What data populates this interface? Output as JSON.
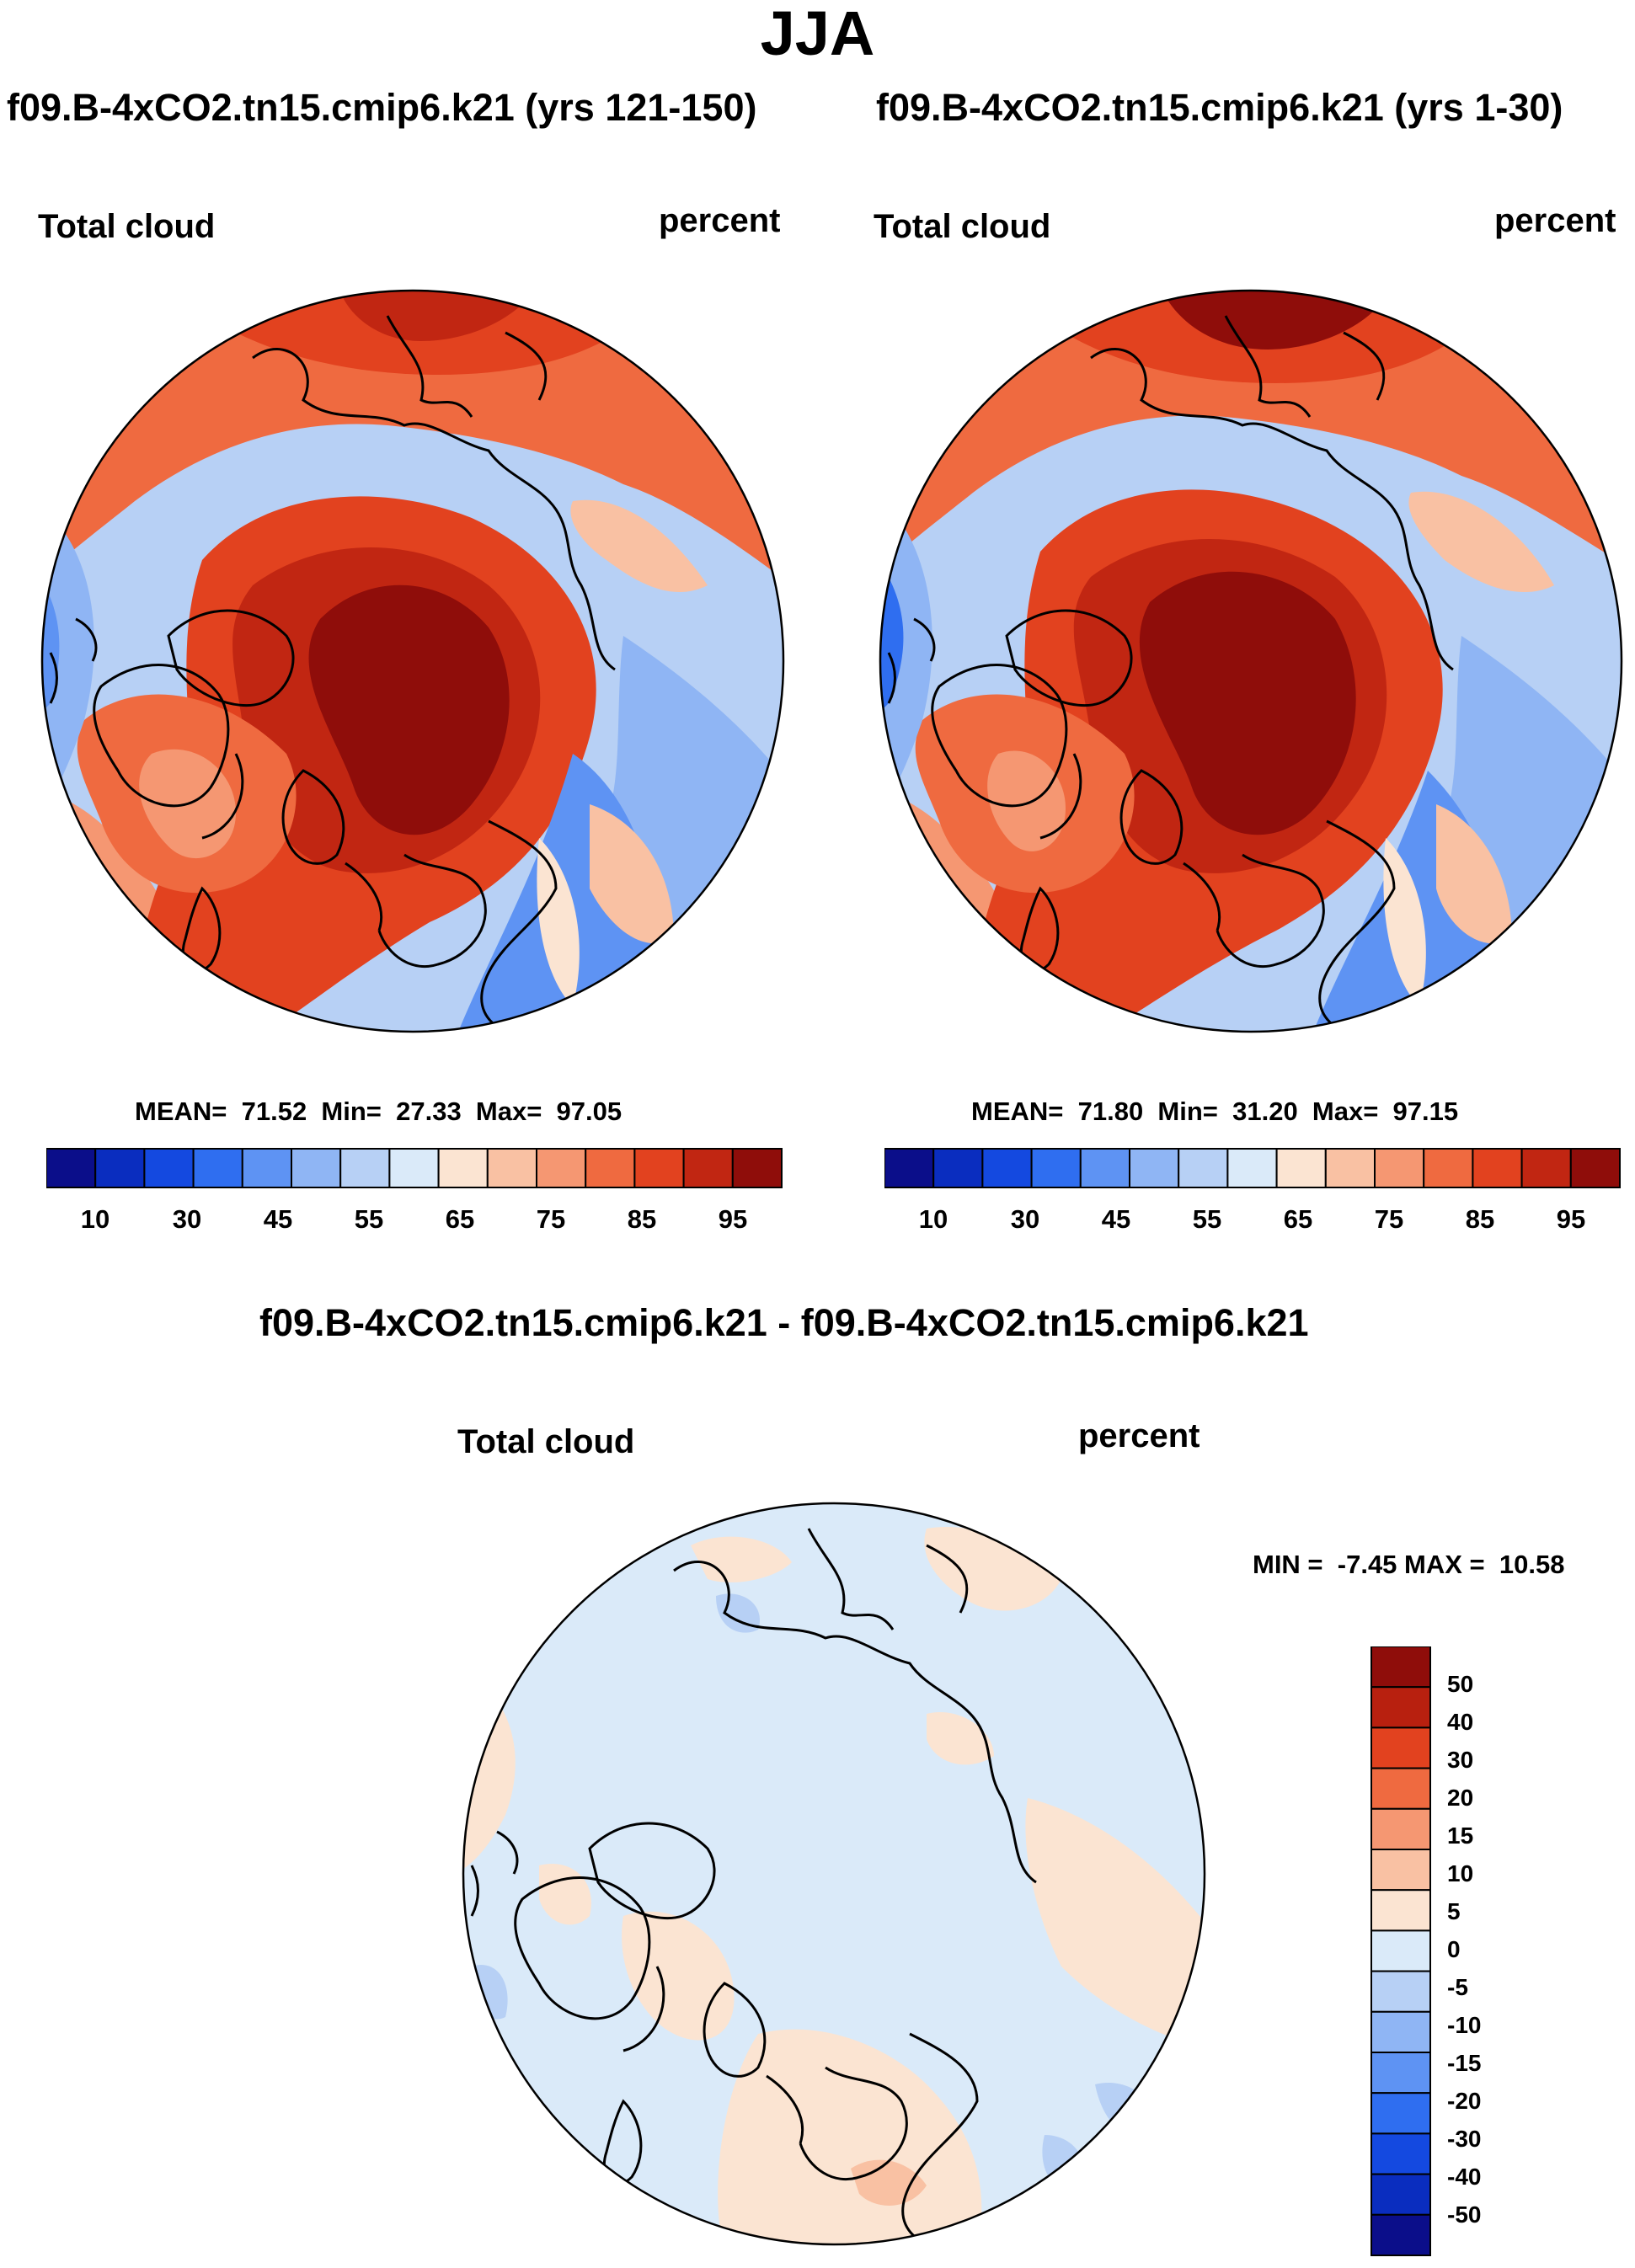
{
  "header": {
    "title": "JJA"
  },
  "panels": [
    {
      "case": "f09.B-4xCO2.tn15.cmip6.k21 (yrs 121-150)",
      "variable": "Total cloud",
      "units": "percent",
      "stats": "MEAN=  71.52  Min=  27.33  Max=  97.05",
      "palette": "abs"
    },
    {
      "case": "f09.B-4xCO2.tn15.cmip6.k21 (yrs 1-30)",
      "variable": "Total cloud",
      "units": "percent",
      "stats": "MEAN=  71.80  Min=  31.20  Max=  97.15",
      "palette": "abs"
    }
  ],
  "diff_panel": {
    "case": "f09.B-4xCO2.tn15.cmip6.k21 - f09.B-4xCO2.tn15.cmip6.k21",
    "variable": "Total cloud",
    "units": "percent",
    "stats": "MIN =  -7.45 MAX =  10.58"
  },
  "abs_colorbar": {
    "tick_labels": [
      "10",
      "30",
      "45",
      "55",
      "65",
      "75",
      "85",
      "95"
    ],
    "colors": [
      "#0b0e8a",
      "#0a2dbf",
      "#1449e0",
      "#2f6ef0",
      "#5e93f3",
      "#8fb5f4",
      "#b7d0f5",
      "#daeaf9",
      "#fbe4d2",
      "#f9c1a3",
      "#f59772",
      "#ef6a40",
      "#e2421f",
      "#c12612",
      "#8f0d0a"
    ]
  },
  "diff_colorbar": {
    "tick_labels": [
      "50",
      "40",
      "30",
      "20",
      "15",
      "10",
      "5",
      "0",
      "-5",
      "-10",
      "-15",
      "-20",
      "-30",
      "-40",
      "-50"
    ],
    "colors": [
      "#8f0d0a",
      "#b8200f",
      "#e2421f",
      "#ef6a40",
      "#f59772",
      "#f9c1a3",
      "#fbe4d2",
      "#daeaf9",
      "#b7d0f5",
      "#8fb5f4",
      "#5e93f3",
      "#2f6ef0",
      "#1449e0",
      "#0a2dbf",
      "#0b0e8a"
    ]
  }
}
